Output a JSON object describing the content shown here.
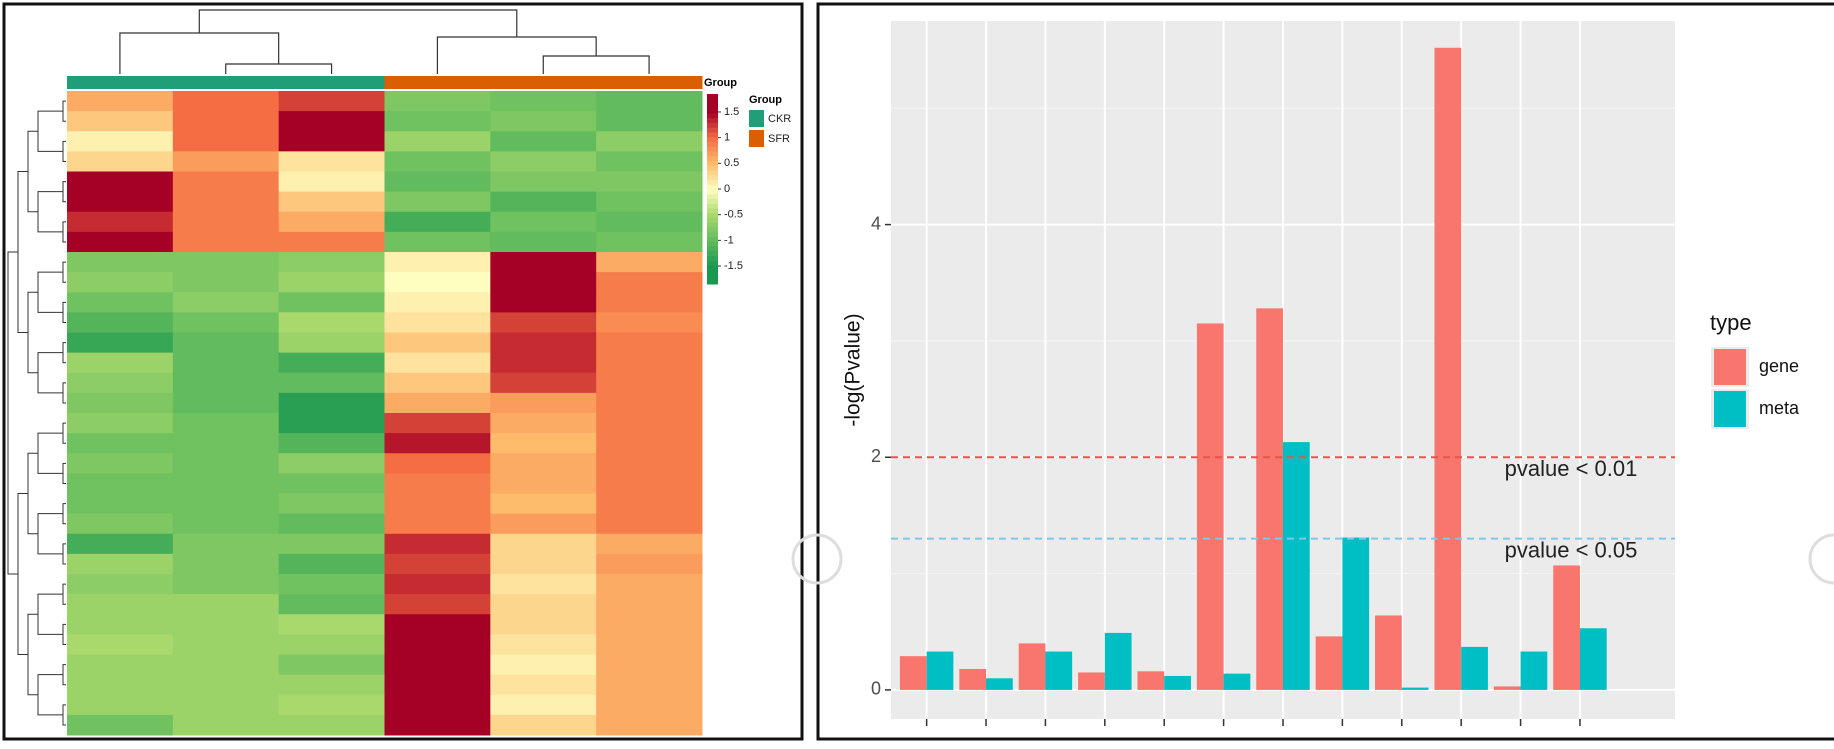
{
  "chart_data": [
    {
      "type": "heatmap",
      "annotation_title": "Group",
      "legend_title": "Group",
      "groups": [
        {
          "name": "CKR",
          "color": "#1f9e78"
        },
        {
          "name": "SFR",
          "color": "#d95f02"
        }
      ],
      "column_groups": [
        0,
        0,
        0,
        1,
        1,
        1
      ],
      "clim": [
        -1.85,
        1.85
      ],
      "colorbar": {
        "ticks": [
          -1.5,
          -1,
          -0.5,
          0,
          0.5,
          1,
          1.5
        ],
        "colors": [
          "#1a9850",
          "#62bb5c",
          "#a9d96c",
          "#fefec0",
          "#fdbb6c",
          "#f46d43",
          "#a50026"
        ]
      },
      "values": [
        [
          0.6,
          1.0,
          1.2,
          -0.8,
          -0.9,
          -1.0
        ],
        [
          0.4,
          1.0,
          1.7,
          -0.9,
          -0.8,
          -1.0
        ],
        [
          0.1,
          1.0,
          1.7,
          -0.6,
          -1.0,
          -0.7
        ],
        [
          0.3,
          0.7,
          0.2,
          -0.9,
          -0.7,
          -0.9
        ],
        [
          1.7,
          0.9,
          0.1,
          -1.0,
          -0.8,
          -0.8
        ],
        [
          1.5,
          0.9,
          0.4,
          -0.8,
          -1.1,
          -0.9
        ],
        [
          1.3,
          0.9,
          0.6,
          -1.2,
          -0.9,
          -1.0
        ],
        [
          1.5,
          0.9,
          0.9,
          -0.9,
          -1.0,
          -0.9
        ],
        [
          -0.8,
          -0.8,
          -0.7,
          0.1,
          1.7,
          0.6
        ],
        [
          -0.7,
          -0.8,
          -0.6,
          0.0,
          1.6,
          0.9
        ],
        [
          -0.9,
          -0.7,
          -0.9,
          0.1,
          1.6,
          0.9
        ],
        [
          -1.1,
          -0.9,
          -0.5,
          0.2,
          1.2,
          0.8
        ],
        [
          -1.3,
          -1.0,
          -0.6,
          0.4,
          1.3,
          0.9
        ],
        [
          -0.6,
          -1.0,
          -1.2,
          0.2,
          1.3,
          0.9
        ],
        [
          -0.7,
          -1.0,
          -1.0,
          0.4,
          1.2,
          0.9
        ],
        [
          -0.8,
          -1.0,
          -1.4,
          0.6,
          0.7,
          0.9
        ],
        [
          -0.7,
          -0.9,
          -1.4,
          1.2,
          0.6,
          0.9
        ],
        [
          -0.9,
          -0.9,
          -1.1,
          1.4,
          0.5,
          0.9
        ],
        [
          -0.8,
          -0.9,
          -0.7,
          1.0,
          0.6,
          0.9
        ],
        [
          -0.9,
          -0.9,
          -0.9,
          0.9,
          0.6,
          0.9
        ],
        [
          -0.9,
          -0.9,
          -0.8,
          0.9,
          0.5,
          0.9
        ],
        [
          -0.8,
          -0.9,
          -1.0,
          0.9,
          0.7,
          0.9
        ],
        [
          -1.2,
          -0.8,
          -0.8,
          1.3,
          0.3,
          0.6
        ],
        [
          -0.6,
          -0.8,
          -1.1,
          1.2,
          0.3,
          0.7
        ],
        [
          -0.7,
          -0.8,
          -0.9,
          1.3,
          0.2,
          0.6
        ],
        [
          -0.6,
          -0.6,
          -1.0,
          1.2,
          0.3,
          0.6
        ],
        [
          -0.6,
          -0.6,
          -0.5,
          1.7,
          0.3,
          0.6
        ],
        [
          -0.5,
          -0.6,
          -0.6,
          1.7,
          0.2,
          0.6
        ],
        [
          -0.6,
          -0.6,
          -0.8,
          1.7,
          0.1,
          0.6
        ],
        [
          -0.6,
          -0.6,
          -0.6,
          1.7,
          0.2,
          0.6
        ],
        [
          -0.6,
          -0.6,
          -0.5,
          1.7,
          0.1,
          0.6
        ],
        [
          -0.9,
          -0.6,
          -0.6,
          1.7,
          0.3,
          0.6
        ]
      ]
    },
    {
      "type": "bar",
      "y_label": "-log(Pvalue)",
      "legend_title": "type",
      "categories": [
        null,
        null,
        null,
        null,
        null,
        null,
        null,
        null,
        null,
        null,
        null,
        null
      ],
      "series": [
        {
          "name": "gene",
          "color": "#f8766d",
          "values": [
            0.29,
            0.18,
            0.4,
            0.15,
            0.16,
            3.15,
            3.28,
            0.46,
            0.64,
            5.52,
            0.03,
            1.07
          ]
        },
        {
          "name": "meta",
          "color": "#00bfc4",
          "values": [
            0.33,
            0.1,
            0.33,
            0.49,
            0.12,
            0.14,
            2.13,
            1.31,
            0.02,
            0.37,
            0.33,
            0.53
          ]
        }
      ],
      "ylim": [
        -0.25,
        5.75
      ],
      "yticks": [
        0,
        2,
        4
      ],
      "yminor": [
        1,
        3,
        5
      ],
      "grid": true,
      "hlines": [
        {
          "value": 2,
          "color": "#e8534a",
          "label": "pvalue < 0.01"
        },
        {
          "value": 1.3,
          "color": "#7cc7ec",
          "label": "pvalue < 0.05"
        }
      ]
    }
  ]
}
